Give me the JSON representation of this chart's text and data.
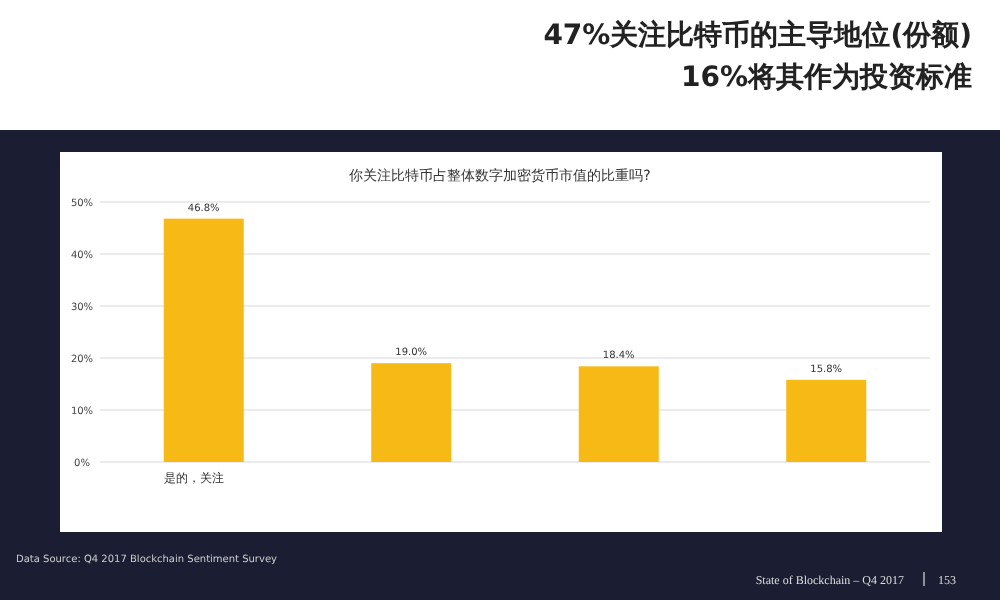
{
  "chart_data": {
    "type": "bar",
    "title": "你关注比特币占整体数字加密货币市值的比重吗?",
    "subtitle": [
      "47%关注比特币的主导地位(份额)",
      "16%将其作为投资标准"
    ],
    "categories": [
      "是的，关注",
      null,
      null,
      null
    ],
    "values": [
      46.8,
      19.0,
      18.4,
      15.8
    ],
    "value_labels": [
      "46.8%",
      "19.0%",
      "18.4%",
      "15.8%"
    ],
    "color": "#f7b916",
    "ylim": [
      0,
      50
    ],
    "yticks": [
      {
        "value": 0,
        "label": "0%"
      },
      {
        "value": 10,
        "label": "10%"
      },
      {
        "value": 20,
        "label": "20%"
      },
      {
        "value": 30,
        "label": "30%"
      },
      {
        "value": 40,
        "label": "40%"
      },
      {
        "value": 50,
        "label": "50%"
      }
    ],
    "grid": "y",
    "annotations": [
      "Data Source: Q4 2017 Blockchain Sentiment Survey",
      "State of Blockchain – Q4 2017",
      "153"
    ]
  }
}
